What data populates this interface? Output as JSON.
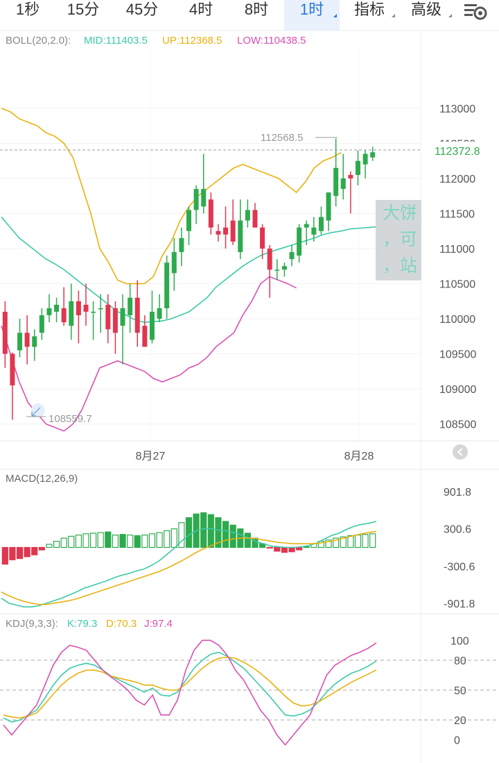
{
  "tabs": [
    {
      "label": "1秒"
    },
    {
      "label": "15分"
    },
    {
      "label": "45分"
    },
    {
      "label": "4时"
    },
    {
      "label": "8时"
    },
    {
      "label": "1时",
      "active": true
    },
    {
      "label": "指标"
    },
    {
      "label": "高级"
    }
  ],
  "boll": {
    "name": "BOLL(20,2.0):",
    "mid": "MID:111403.5",
    "up": "UP:112368.5",
    "low": "LOW:110438.5"
  },
  "macd": {
    "name": "MACD(12,26,9)"
  },
  "kdj": {
    "name": "KDJ(9,3,3):",
    "k": "K:79.3",
    "d": "D:70.3",
    "j": "J:97.4"
  },
  "price_labels": {
    "high": "112568.5",
    "low": "108559.7",
    "current": "112372.8"
  },
  "popup_lines": [
    "大饼",
    "，可",
    "，站"
  ],
  "colors": {
    "up": "#2eaa4e",
    "down": "#e0364f",
    "mid": "#3cc9a9",
    "upper": "#e8b10c",
    "lower": "#d94fb2",
    "dif": "#3cc9a9",
    "dea": "#e8b10c",
    "k": "#3cc9a9",
    "d": "#e8b10c",
    "j": "#d94fb2"
  },
  "chart_data": [
    {
      "type": "candlestick",
      "title": "BOLL(20,2.0)",
      "x_ticks": [
        "8月27",
        "8月28"
      ],
      "y_ticks": [
        "113000",
        "112500",
        "112000",
        "111500",
        "111000",
        "110500",
        "110000",
        "109500",
        "109000",
        "108500"
      ],
      "ylim": [
        108250,
        113850
      ],
      "candles": [
        [
          110100,
          110250,
          109300,
          109500
        ],
        [
          109500,
          109520,
          108560,
          109050
        ],
        [
          109550,
          110000,
          109450,
          109800
        ],
        [
          109800,
          110050,
          109350,
          109600
        ],
        [
          109600,
          109850,
          109400,
          109750
        ],
        [
          109800,
          110150,
          109700,
          110050
        ],
        [
          110050,
          110350,
          109950,
          110150
        ],
        [
          110100,
          110300,
          109950,
          110200
        ],
        [
          110150,
          110450,
          109900,
          109950
        ],
        [
          109900,
          110500,
          109700,
          110250
        ],
        [
          110250,
          110400,
          109650,
          110050
        ],
        [
          110200,
          110500,
          109900,
          110100
        ],
        [
          110100,
          110250,
          109700,
          110100
        ],
        [
          110150,
          110350,
          109800,
          110150
        ],
        [
          110200,
          110350,
          109650,
          109850
        ],
        [
          110150,
          110250,
          109500,
          109800
        ],
        [
          109900,
          110350,
          109350,
          110150
        ],
        [
          110050,
          110500,
          109800,
          110300
        ],
        [
          110300,
          110550,
          109600,
          109800
        ],
        [
          109900,
          110050,
          109600,
          109600
        ],
        [
          109700,
          110400,
          109650,
          110100
        ],
        [
          110000,
          110350,
          109950,
          110150
        ],
        [
          110150,
          110900,
          110000,
          110800
        ],
        [
          110650,
          111150,
          110400,
          110950
        ],
        [
          110950,
          111300,
          110750,
          111150
        ],
        [
          111250,
          111600,
          111050,
          111550
        ],
        [
          111550,
          111900,
          111350,
          111850
        ],
        [
          111600,
          112350,
          111500,
          111850
        ],
        [
          111700,
          111800,
          111200,
          111300
        ],
        [
          111250,
          111350,
          111100,
          111200
        ],
        [
          111300,
          111600,
          111000,
          111200
        ],
        [
          111400,
          111700,
          111050,
          111100
        ],
        [
          110950,
          111700,
          110850,
          111400
        ],
        [
          111400,
          111700,
          111300,
          111550
        ],
        [
          111550,
          111650,
          111300,
          111300
        ],
        [
          111300,
          111350,
          110850,
          111000
        ],
        [
          111000,
          111050,
          110300,
          110700
        ],
        [
          110700,
          110850,
          110550,
          110700
        ],
        [
          110700,
          110800,
          110600,
          110750
        ],
        [
          110850,
          111050,
          110750,
          110950
        ],
        [
          110900,
          111350,
          110800,
          111300
        ],
        [
          111300,
          111400,
          111050,
          111350
        ],
        [
          111200,
          111450,
          111100,
          111300
        ],
        [
          111250,
          111600,
          111200,
          111450
        ],
        [
          111400,
          111800,
          111250,
          111800
        ],
        [
          111750,
          112568.5,
          111600,
          112150
        ],
        [
          111850,
          112350,
          111700,
          112000
        ],
        [
          112050,
          112100,
          111500,
          112000
        ],
        [
          112050,
          112400,
          111900,
          112250
        ],
        [
          112200,
          112400,
          112000,
          112350
        ],
        [
          112300,
          112450,
          112250,
          112372.8
        ]
      ],
      "series": [
        {
          "name": "MID",
          "values": [
            111450,
            111300,
            111150,
            111050,
            110950,
            110850,
            110780,
            110700,
            110600,
            110500,
            110400,
            110300,
            110200,
            110100,
            110050,
            109980,
            109950,
            109960,
            109970,
            110000,
            110050,
            110100,
            110200,
            110300,
            110450,
            110550,
            110650,
            110750,
            110830,
            110900,
            110950,
            110990,
            111030,
            111070,
            111110,
            111150,
            111200,
            111230,
            111250,
            111280,
            111290,
            111300,
            111310,
            111330,
            111360,
            111380,
            111400,
            111403.5,
            null,
            null,
            null
          ]
        },
        {
          "name": "UP",
          "values": [
            113000,
            112950,
            112850,
            112800,
            112750,
            112650,
            112600,
            112500,
            112300,
            111900,
            111500,
            111000,
            110800,
            110550,
            110500,
            110500,
            110500,
            110600,
            110900,
            111100,
            111400,
            111600,
            111750,
            111850,
            111950,
            112050,
            112150,
            112200,
            112150,
            112100,
            112050,
            112000,
            111900,
            111800,
            111950,
            112150,
            112250,
            112300,
            112368.5,
            null,
            null,
            null,
            null,
            null,
            null,
            null,
            null,
            null,
            null,
            null,
            null
          ]
        },
        {
          "name": "LOW",
          "values": [
            109900,
            109500,
            109100,
            108800,
            108650,
            108500,
            108450,
            108400,
            108500,
            108700,
            109000,
            109300,
            109350,
            109400,
            109350,
            109300,
            109250,
            109150,
            109100,
            109150,
            109200,
            109300,
            109350,
            109450,
            109600,
            109700,
            109800,
            110050,
            110250,
            110500,
            110600,
            110550,
            110500,
            110438.5,
            null,
            null,
            null,
            null,
            null,
            null,
            null,
            null,
            null,
            null,
            null,
            null,
            null,
            null,
            null,
            null,
            null
          ]
        }
      ]
    },
    {
      "type": "bar",
      "title": "MACD(12,26,9)",
      "y_ticks": [
        "901.8",
        "300.6",
        "-300.6",
        "-901.8"
      ],
      "ylim": [
        -1050,
        1050
      ],
      "histogram": [
        -270,
        -200,
        -180,
        -150,
        -120,
        -40,
        50,
        100,
        150,
        180,
        200,
        220,
        230,
        240,
        250,
        200,
        210,
        200,
        190,
        200,
        220,
        240,
        270,
        300,
        400,
        480,
        540,
        560,
        530,
        480,
        420,
        360,
        300,
        230,
        150,
        60,
        -10,
        -60,
        -80,
        -70,
        -40,
        10,
        60,
        100,
        120,
        150,
        170,
        190,
        200,
        210,
        220
      ],
      "series": [
        {
          "name": "DIF",
          "values": [
            -820,
            -900,
            -930,
            -960,
            -960,
            -940,
            -900,
            -860,
            -820,
            -770,
            -720,
            -660,
            -620,
            -580,
            -540,
            -490,
            -450,
            -420,
            -380,
            -350,
            -290,
            -220,
            -120,
            -20,
            100,
            200,
            270,
            300,
            300,
            280,
            270,
            240,
            200,
            150,
            90,
            60,
            20,
            10,
            0,
            0,
            10,
            30,
            70,
            130,
            190,
            230,
            290,
            340,
            370,
            390,
            420
          ]
        },
        {
          "name": "DEA",
          "values": [
            -720,
            -780,
            -830,
            -870,
            -900,
            -920,
            -920,
            -900,
            -880,
            -860,
            -830,
            -790,
            -750,
            -710,
            -670,
            -630,
            -590,
            -550,
            -510,
            -470,
            -430,
            -390,
            -340,
            -280,
            -220,
            -150,
            -80,
            -20,
            30,
            80,
            120,
            140,
            150,
            150,
            140,
            120,
            100,
            80,
            70,
            60,
            60,
            60,
            65,
            80,
            100,
            130,
            160,
            190,
            220,
            240,
            260
          ]
        }
      ]
    },
    {
      "type": "line",
      "title": "KDJ(9,3,3)",
      "y_ticks": [
        "100",
        "80",
        "50",
        "20",
        "0"
      ],
      "ylim": [
        -10,
        110
      ],
      "series": [
        {
          "name": "K",
          "values": [
            22,
            18,
            20,
            25,
            30,
            42,
            55,
            65,
            72,
            75,
            77,
            75,
            70,
            64,
            60,
            56,
            52,
            48,
            52,
            45,
            44,
            48,
            60,
            72,
            80,
            86,
            88,
            84,
            78,
            72,
            63,
            54,
            45,
            35,
            25,
            24,
            26,
            30,
            38,
            48,
            56,
            62,
            67,
            70,
            74,
            79.3
          ]
        },
        {
          "name": "D",
          "values": [
            25,
            23,
            22,
            24,
            27,
            36,
            46,
            55,
            62,
            67,
            70,
            70,
            68,
            64,
            62,
            60,
            58,
            55,
            55,
            52,
            50,
            50,
            56,
            64,
            72,
            78,
            82,
            83,
            82,
            78,
            73,
            67,
            60,
            52,
            44,
            37,
            34,
            35,
            38,
            43,
            48,
            53,
            58,
            62,
            66,
            70.3
          ]
        },
        {
          "name": "J",
          "values": [
            15,
            5,
            15,
            25,
            35,
            55,
            75,
            88,
            95,
            93,
            90,
            80,
            70,
            63,
            57,
            50,
            40,
            35,
            45,
            25,
            25,
            40,
            70,
            90,
            100,
            100,
            95,
            85,
            70,
            60,
            45,
            30,
            20,
            5,
            -5,
            5,
            15,
            25,
            45,
            65,
            75,
            80,
            85,
            88,
            92,
            97.4
          ]
        }
      ]
    }
  ]
}
